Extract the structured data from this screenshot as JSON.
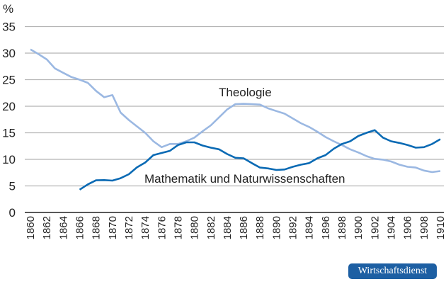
{
  "chart_data": {
    "type": "line",
    "title": "",
    "xlabel": "",
    "ylabel": "%",
    "xlim": [
      1860,
      1910
    ],
    "ylim": [
      0,
      35
    ],
    "yticks": [
      0,
      5,
      10,
      15,
      20,
      25,
      30,
      35
    ],
    "xticks": [
      1860,
      1862,
      1864,
      1866,
      1868,
      1870,
      1872,
      1874,
      1876,
      1878,
      1880,
      1882,
      1884,
      1886,
      1888,
      1890,
      1892,
      1894,
      1896,
      1898,
      1900,
      1902,
      1904,
      1906,
      1908,
      1910
    ],
    "grid": true,
    "series": [
      {
        "name": "Theologie",
        "color": "#9bb8e2",
        "x": [
          1860,
          1861,
          1862,
          1863,
          1864,
          1865,
          1866,
          1867,
          1868,
          1869,
          1870,
          1871,
          1872,
          1873,
          1874,
          1875,
          1876,
          1877,
          1878,
          1879,
          1880,
          1881,
          1882,
          1883,
          1884,
          1885,
          1886,
          1887,
          1888,
          1889,
          1890,
          1891,
          1892,
          1893,
          1894,
          1895,
          1896,
          1897,
          1898,
          1899,
          1900,
          1901,
          1902,
          1903,
          1904,
          1905,
          1906,
          1907,
          1908,
          1909,
          1910
        ],
        "values": [
          30.7,
          29.8,
          28.8,
          27.1,
          26.3,
          25.5,
          25.0,
          24.4,
          22.9,
          21.7,
          22.1,
          18.8,
          17.4,
          16.2,
          15.0,
          13.4,
          12.3,
          12.9,
          12.9,
          13.4,
          14.1,
          15.3,
          16.4,
          17.9,
          19.4,
          20.4,
          20.45,
          20.4,
          20.3,
          19.6,
          19.1,
          18.6,
          17.7,
          16.8,
          16.1,
          15.2,
          14.2,
          13.4,
          12.7,
          11.9,
          11.3,
          10.6,
          10.1,
          9.95,
          9.6,
          9.0,
          8.6,
          8.45,
          7.9,
          7.6,
          7.8
        ]
      },
      {
        "name": "Mathematik und Naturwissenschaften",
        "color": "#0a6ab4",
        "x": [
          1866,
          1867,
          1868,
          1869,
          1870,
          1871,
          1872,
          1873,
          1874,
          1875,
          1876,
          1877,
          1878,
          1879,
          1880,
          1881,
          1882,
          1883,
          1884,
          1885,
          1886,
          1887,
          1888,
          1889,
          1890,
          1891,
          1892,
          1893,
          1894,
          1895,
          1896,
          1897,
          1898,
          1899,
          1900,
          1901,
          1902,
          1903,
          1904,
          1905,
          1906,
          1907,
          1908,
          1909,
          1910
        ],
        "values": [
          4.3,
          5.3,
          6.05,
          6.1,
          6.0,
          6.45,
          7.2,
          8.5,
          9.4,
          10.8,
          11.2,
          11.6,
          12.7,
          13.2,
          13.2,
          12.6,
          12.2,
          11.9,
          11.0,
          10.3,
          10.2,
          9.3,
          8.45,
          8.3,
          8.0,
          8.1,
          8.6,
          9.0,
          9.3,
          10.2,
          10.8,
          12.0,
          12.9,
          13.4,
          14.4,
          15.0,
          15.5,
          14.1,
          13.4,
          13.1,
          12.7,
          12.2,
          12.3,
          12.9,
          13.8
        ]
      }
    ]
  },
  "labels": {
    "unit": "%",
    "theologie": "Theologie",
    "mathematik": "Mathematik und Naturwissenschaften"
  },
  "logo": {
    "text": "Wirtschaftsdienst"
  }
}
